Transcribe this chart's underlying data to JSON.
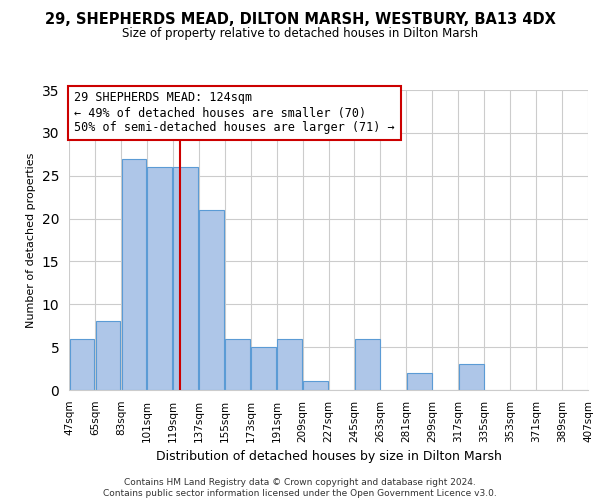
{
  "title": "29, SHEPHERDS MEAD, DILTON MARSH, WESTBURY, BA13 4DX",
  "subtitle": "Size of property relative to detached houses in Dilton Marsh",
  "xlabel": "Distribution of detached houses by size in Dilton Marsh",
  "ylabel": "Number of detached properties",
  "footer_line1": "Contains HM Land Registry data © Crown copyright and database right 2024.",
  "footer_line2": "Contains public sector information licensed under the Open Government Licence v3.0.",
  "bin_labels": [
    "47sqm",
    "65sqm",
    "83sqm",
    "101sqm",
    "119sqm",
    "137sqm",
    "155sqm",
    "173sqm",
    "191sqm",
    "209sqm",
    "227sqm",
    "245sqm",
    "263sqm",
    "281sqm",
    "299sqm",
    "317sqm",
    "335sqm",
    "353sqm",
    "371sqm",
    "389sqm",
    "407sqm"
  ],
  "bar_values": [
    6,
    8,
    27,
    26,
    26,
    21,
    6,
    5,
    6,
    1,
    0,
    6,
    0,
    2,
    0,
    3,
    0,
    0,
    0,
    0,
    0
  ],
  "bar_color": "#aec6e8",
  "bar_edge_color": "#5b9bd5",
  "ylim": [
    0,
    35
  ],
  "yticks": [
    0,
    5,
    10,
    15,
    20,
    25,
    30,
    35
  ],
  "property_line_x": 124,
  "bin_edges": [
    47,
    65,
    83,
    101,
    119,
    137,
    155,
    173,
    191,
    209,
    227,
    245,
    263,
    281,
    299,
    317,
    335,
    353,
    371,
    389,
    407
  ],
  "annotation_title": "29 SHEPHERDS MEAD: 124sqm",
  "annotation_line1": "← 49% of detached houses are smaller (70)",
  "annotation_line2": "50% of semi-detached houses are larger (71) →",
  "vline_color": "#cc0000",
  "annotation_box_edge_color": "#cc0000",
  "background_color": "#ffffff",
  "grid_color": "#cccccc"
}
